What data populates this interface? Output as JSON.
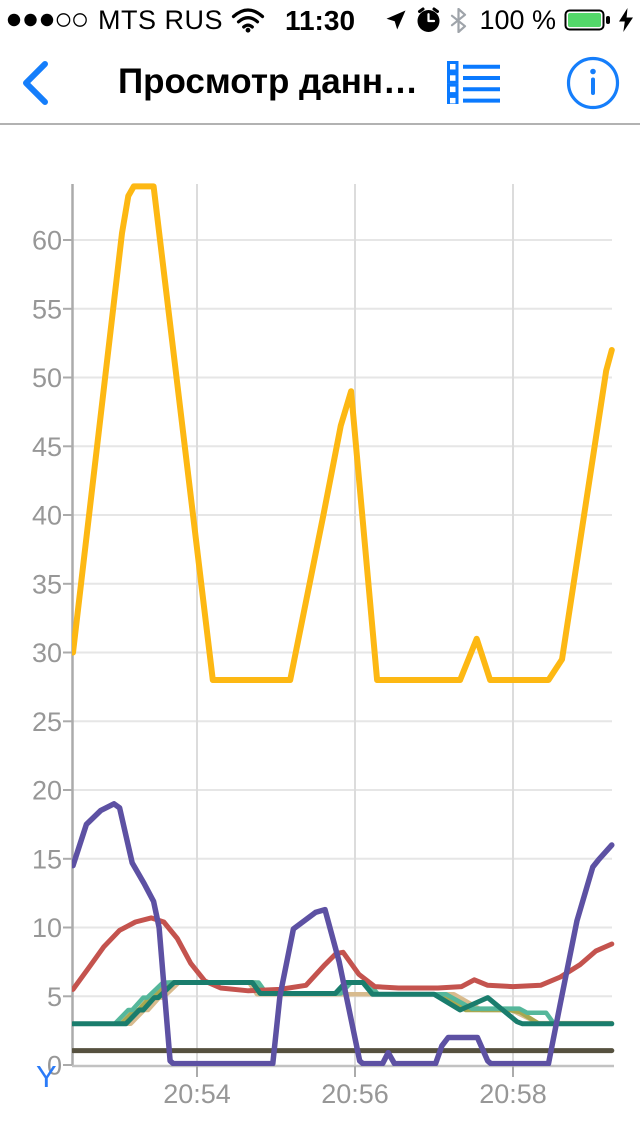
{
  "status_bar": {
    "carrier": "MTS RUS",
    "time": "11:30",
    "battery_percent": "100 %",
    "signal": {
      "filled": 3,
      "total": 5
    },
    "icons": [
      "signal-dots",
      "wifi-icon",
      "location-icon",
      "alarm-icon",
      "bluetooth-icon",
      "battery-icon",
      "charging-bolt-icon"
    ],
    "battery_color": "#53d769"
  },
  "nav_bar": {
    "title": "Просмотр данн…",
    "accent_color": "#157efb",
    "icons": [
      "back-chevron-icon",
      "list-icon",
      "info-icon"
    ]
  },
  "chart_data": {
    "type": "line",
    "title": "",
    "xlabel": "",
    "ylabel": "Y",
    "y_axis_title": {
      "text": "Y",
      "color": "#2b7bf8"
    },
    "grid": true,
    "x_axis_unit": "time",
    "x_range_minutes": [
      0.43,
      7.25
    ],
    "ylim": [
      0,
      63.6
    ],
    "y_ticks": [
      0,
      5,
      10,
      15,
      20,
      25,
      30,
      35,
      40,
      45,
      50,
      55,
      60
    ],
    "x_ticks": [
      {
        "t": 2,
        "label": "20:54"
      },
      {
        "t": 4,
        "label": "20:56"
      },
      {
        "t": 6,
        "label": "20:58"
      }
    ],
    "label_color": "#979797",
    "series": [
      {
        "name": "tan",
        "color": "#d8bb8e",
        "width": 4.5,
        "points": [
          [
            0.43,
            3.0
          ],
          [
            1.16,
            3.0
          ],
          [
            1.33,
            4.0
          ],
          [
            1.38,
            4.0
          ],
          [
            1.52,
            4.9
          ],
          [
            1.57,
            4.9
          ],
          [
            1.77,
            6.0
          ],
          [
            2.66,
            6.0
          ],
          [
            2.76,
            5.15
          ],
          [
            5.25,
            5.15
          ],
          [
            5.6,
            4.0
          ],
          [
            5.98,
            4.0
          ],
          [
            6.32,
            3.05
          ],
          [
            7.25,
            3.05
          ]
        ]
      },
      {
        "name": "olive",
        "color": "#a8a850",
        "width": 4.5,
        "points": [
          [
            0.43,
            3.0
          ],
          [
            1.04,
            3.0
          ],
          [
            1.21,
            4.0
          ],
          [
            1.26,
            4.0
          ],
          [
            1.4,
            4.9
          ],
          [
            1.45,
            4.9
          ],
          [
            1.65,
            6.0
          ],
          [
            2.74,
            6.0
          ],
          [
            2.84,
            5.2
          ],
          [
            3.79,
            5.2
          ],
          [
            3.92,
            6.0
          ],
          [
            4.14,
            6.0
          ],
          [
            4.26,
            5.15
          ],
          [
            5.07,
            5.15
          ],
          [
            5.4,
            4.0
          ],
          [
            5.95,
            4.0
          ],
          [
            6.09,
            3.85
          ],
          [
            6.33,
            3.0
          ],
          [
            7.25,
            3.0
          ]
        ]
      },
      {
        "name": "seafoam",
        "color": "#55b79b",
        "width": 4.5,
        "points": [
          [
            0.43,
            3.0
          ],
          [
            0.96,
            3.0
          ],
          [
            1.13,
            4.0
          ],
          [
            1.18,
            4.0
          ],
          [
            1.32,
            4.9
          ],
          [
            1.37,
            4.9
          ],
          [
            1.57,
            6.0
          ],
          [
            2.78,
            6.0
          ],
          [
            2.88,
            5.2
          ],
          [
            3.82,
            5.2
          ],
          [
            3.95,
            6.0
          ],
          [
            4.17,
            6.0
          ],
          [
            4.29,
            5.15
          ],
          [
            5.15,
            5.15
          ],
          [
            5.48,
            4.1
          ],
          [
            6.08,
            4.1
          ],
          [
            6.18,
            3.8
          ],
          [
            6.42,
            3.8
          ],
          [
            6.52,
            3.0
          ],
          [
            7.25,
            3.0
          ]
        ]
      },
      {
        "name": "red",
        "color": "#c4534e",
        "width": 5,
        "points": [
          [
            0.43,
            5.5
          ],
          [
            0.62,
            7.0
          ],
          [
            0.82,
            8.6
          ],
          [
            1.02,
            9.8
          ],
          [
            1.22,
            10.4
          ],
          [
            1.42,
            10.7
          ],
          [
            1.58,
            10.4
          ],
          [
            1.75,
            9.2
          ],
          [
            1.92,
            7.4
          ],
          [
            2.1,
            6.1
          ],
          [
            2.3,
            5.6
          ],
          [
            2.65,
            5.4
          ],
          [
            3.05,
            5.5
          ],
          [
            3.38,
            5.8
          ],
          [
            3.62,
            7.3
          ],
          [
            3.76,
            8.1
          ],
          [
            3.85,
            8.2
          ],
          [
            4.05,
            6.6
          ],
          [
            4.25,
            5.7
          ],
          [
            4.55,
            5.6
          ],
          [
            5.05,
            5.6
          ],
          [
            5.35,
            5.7
          ],
          [
            5.51,
            6.2
          ],
          [
            5.68,
            5.8
          ],
          [
            6.0,
            5.7
          ],
          [
            6.35,
            5.8
          ],
          [
            6.6,
            6.4
          ],
          [
            6.85,
            7.3
          ],
          [
            7.05,
            8.3
          ],
          [
            7.25,
            8.8
          ]
        ]
      },
      {
        "name": "teal",
        "color": "#1a7d6d",
        "width": 5,
        "points": [
          [
            0.43,
            3.0
          ],
          [
            1.1,
            3.0
          ],
          [
            1.27,
            4.0
          ],
          [
            1.32,
            4.0
          ],
          [
            1.46,
            4.9
          ],
          [
            1.51,
            4.9
          ],
          [
            1.71,
            6.0
          ],
          [
            2.7,
            6.0
          ],
          [
            2.8,
            5.2
          ],
          [
            3.75,
            5.2
          ],
          [
            3.88,
            6.0
          ],
          [
            4.1,
            6.0
          ],
          [
            4.22,
            5.15
          ],
          [
            5.0,
            5.15
          ],
          [
            5.33,
            4.0
          ],
          [
            5.68,
            4.9
          ],
          [
            6.05,
            3.15
          ],
          [
            6.12,
            3.0
          ],
          [
            7.25,
            3.0
          ]
        ]
      },
      {
        "name": "dark-flat",
        "color": "#56513f",
        "width": 5,
        "points": [
          [
            0.43,
            1.05
          ],
          [
            7.25,
            1.05
          ]
        ]
      },
      {
        "name": "purple",
        "color": "#5d51a3",
        "width": 5.5,
        "points": [
          [
            0.43,
            14.5
          ],
          [
            0.6,
            17.5
          ],
          [
            0.78,
            18.5
          ],
          [
            0.95,
            19.0
          ],
          [
            1.02,
            18.7
          ],
          [
            1.18,
            14.7
          ],
          [
            1.33,
            13.2
          ],
          [
            1.45,
            11.9
          ],
          [
            1.52,
            10.0
          ],
          [
            1.66,
            0.3
          ],
          [
            1.7,
            0.1
          ],
          [
            2.96,
            0.1
          ],
          [
            3.05,
            5.0
          ],
          [
            3.22,
            9.9
          ],
          [
            3.5,
            11.1
          ],
          [
            3.62,
            11.3
          ],
          [
            3.8,
            7.5
          ],
          [
            4.06,
            0.3
          ],
          [
            4.1,
            0.1
          ],
          [
            4.35,
            0.1
          ],
          [
            4.42,
            0.9
          ],
          [
            4.5,
            0.1
          ],
          [
            5.02,
            0.1
          ],
          [
            5.1,
            1.4
          ],
          [
            5.18,
            2.0
          ],
          [
            5.55,
            2.0
          ],
          [
            5.68,
            0.3
          ],
          [
            5.72,
            0.1
          ],
          [
            6.45,
            0.1
          ],
          [
            6.6,
            4.5
          ],
          [
            6.81,
            10.5
          ],
          [
            7.01,
            14.4
          ],
          [
            7.08,
            14.9
          ],
          [
            7.25,
            16.0
          ]
        ]
      },
      {
        "name": "yellow",
        "color": "#fdb813",
        "width": 6,
        "points": [
          [
            0.43,
            30
          ],
          [
            1.05,
            60.5
          ],
          [
            1.13,
            63.2
          ],
          [
            1.2,
            63.9
          ],
          [
            1.45,
            63.9
          ],
          [
            2.2,
            28
          ],
          [
            3.18,
            28
          ],
          [
            3.6,
            40
          ],
          [
            3.82,
            46.5
          ],
          [
            3.95,
            49
          ],
          [
            4.28,
            28
          ],
          [
            5.33,
            28
          ],
          [
            5.54,
            31
          ],
          [
            5.71,
            28
          ],
          [
            6.45,
            28
          ],
          [
            6.62,
            29.5
          ],
          [
            7.18,
            50.5
          ],
          [
            7.25,
            52
          ]
        ]
      }
    ]
  }
}
